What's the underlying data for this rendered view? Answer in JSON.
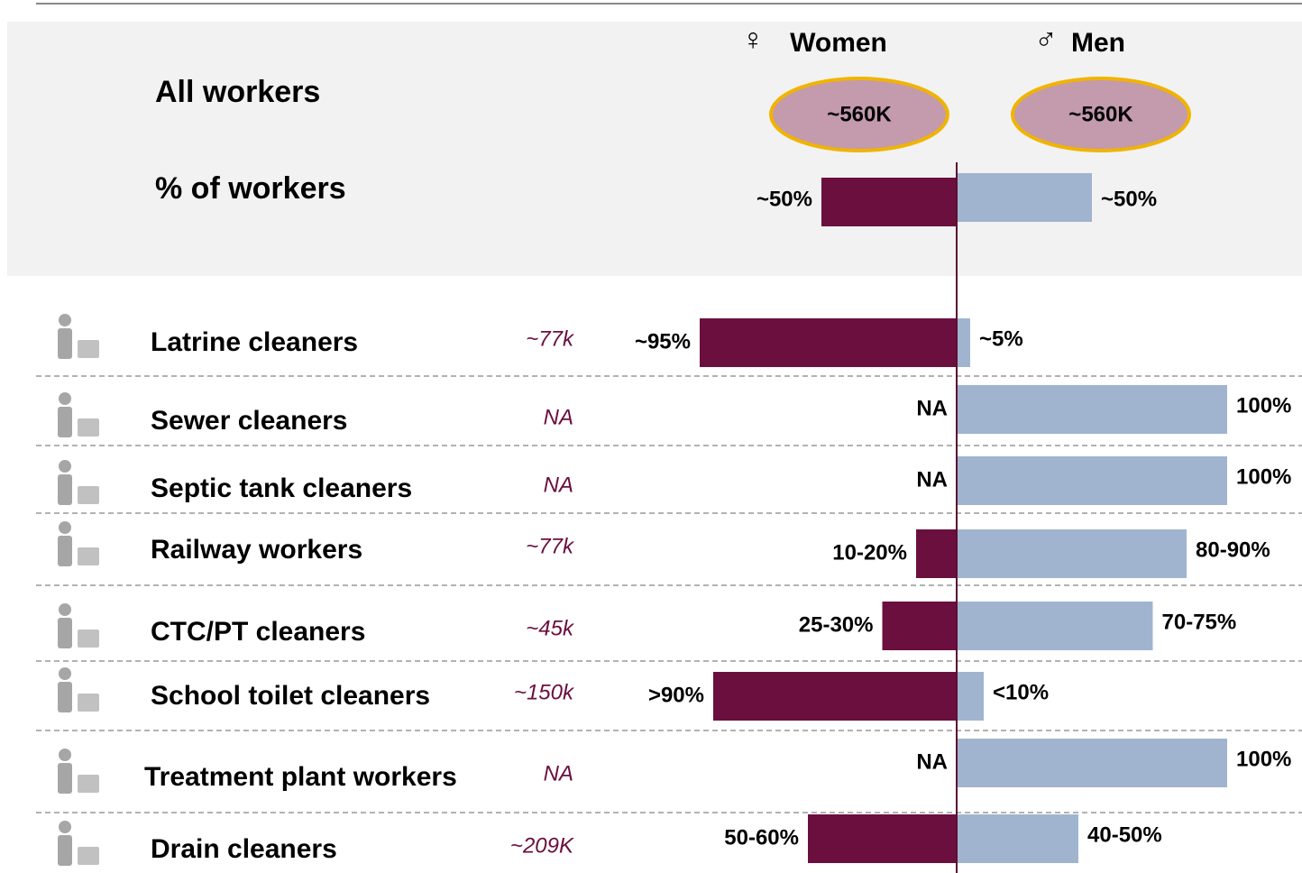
{
  "chart_data": {
    "type": "diverging_bar",
    "summary_title": "All workers",
    "percent_title": "% of workers",
    "categories": [
      "Latrine cleaners",
      "Sewer cleaners",
      "Septic tank cleaners",
      "Railway workers",
      "CTC/PT cleaners",
      "School toilet cleaners",
      "Treatment plant workers",
      "Drain cleaners"
    ],
    "counts": [
      "~77k",
      "NA",
      "NA",
      "~77k",
      "~45k",
      "~150k",
      "NA",
      "~209K"
    ],
    "xlim": [
      0,
      100
    ],
    "series": [
      {
        "name": "Women",
        "symbol": "♀",
        "side": "left",
        "color": "#6b0f3f",
        "total_label": "~560K",
        "overall": 50,
        "overall_label": "~50%",
        "values": [
          95,
          null,
          null,
          15,
          27.5,
          90,
          null,
          55
        ],
        "value_labels": [
          "~95%",
          "NA",
          "NA",
          "10-20%",
          "25-30%",
          ">90%",
          "NA",
          "50-60%"
        ]
      },
      {
        "name": "Men",
        "symbol": "♂",
        "side": "right",
        "color": "#a0b4cf",
        "total_label": "~560K",
        "overall": 50,
        "overall_label": "~50%",
        "values": [
          5,
          100,
          100,
          85,
          72.5,
          10,
          100,
          45
        ],
        "value_labels": [
          "~5%",
          "100%",
          "100%",
          "80-90%",
          "70-75%",
          "<10%",
          "100%",
          "40-50%"
        ]
      }
    ]
  }
}
